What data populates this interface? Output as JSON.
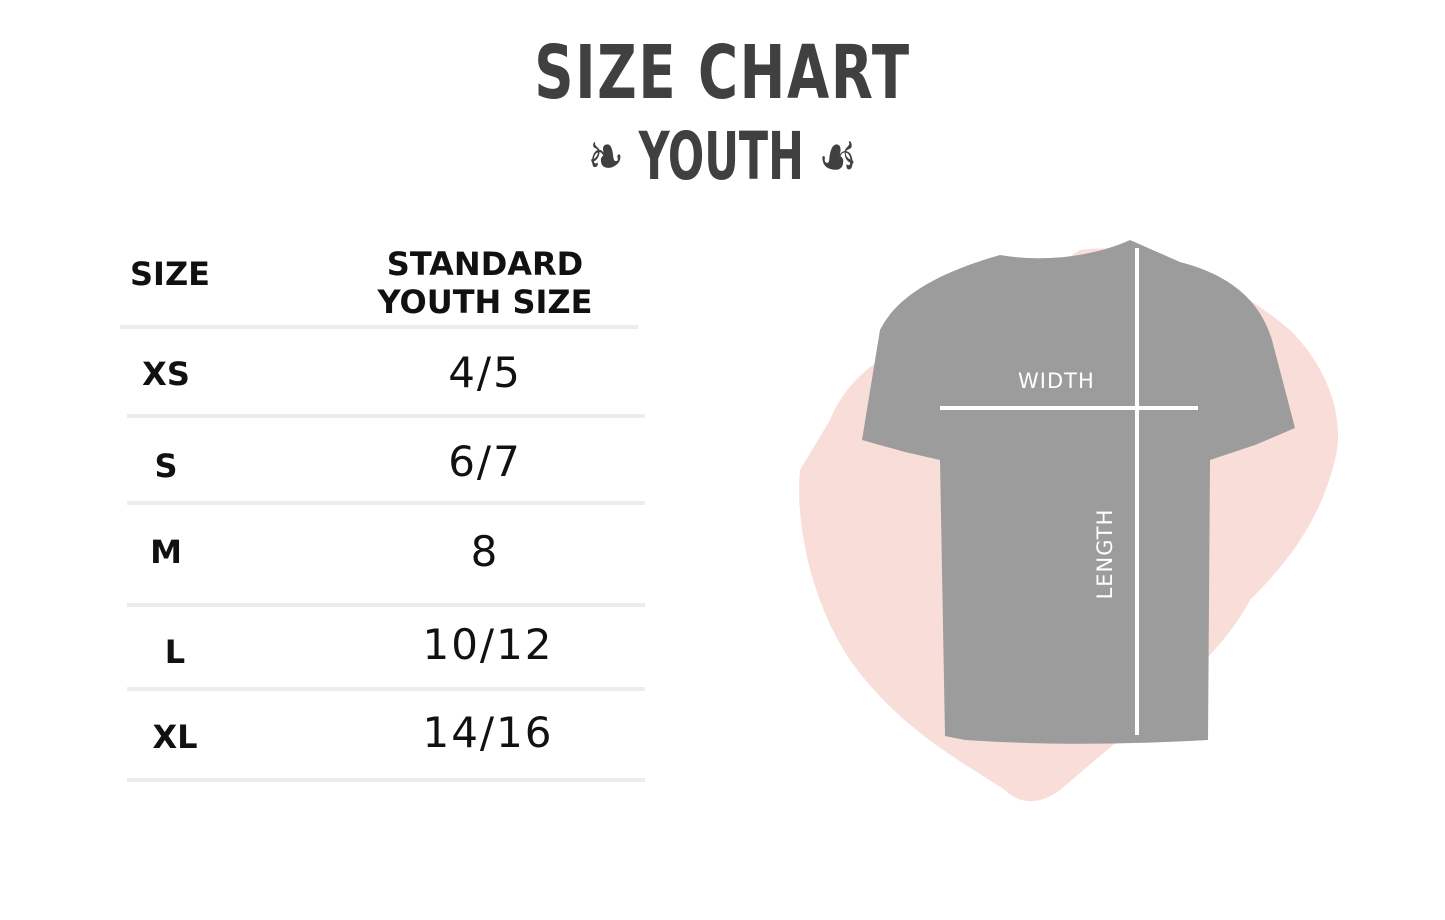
{
  "title": "SIZE CHART",
  "subtitle": "YOUTH",
  "table": {
    "headers": [
      "SIZE",
      "STANDARD YOUTH SIZE"
    ],
    "rows": [
      {
        "size": "XS",
        "youth": "4/5"
      },
      {
        "size": "S",
        "youth": "6/7"
      },
      {
        "size": "M",
        "youth": "8"
      },
      {
        "size": "L",
        "youth": "10/12"
      },
      {
        "size": "XL",
        "youth": "14/16"
      }
    ]
  },
  "diagram": {
    "width_label": "WIDTH",
    "length_label": "LENGTH"
  },
  "colors": {
    "text": "#404040",
    "shirt": "#9a9a9a",
    "blob": "#f8ddd8"
  }
}
